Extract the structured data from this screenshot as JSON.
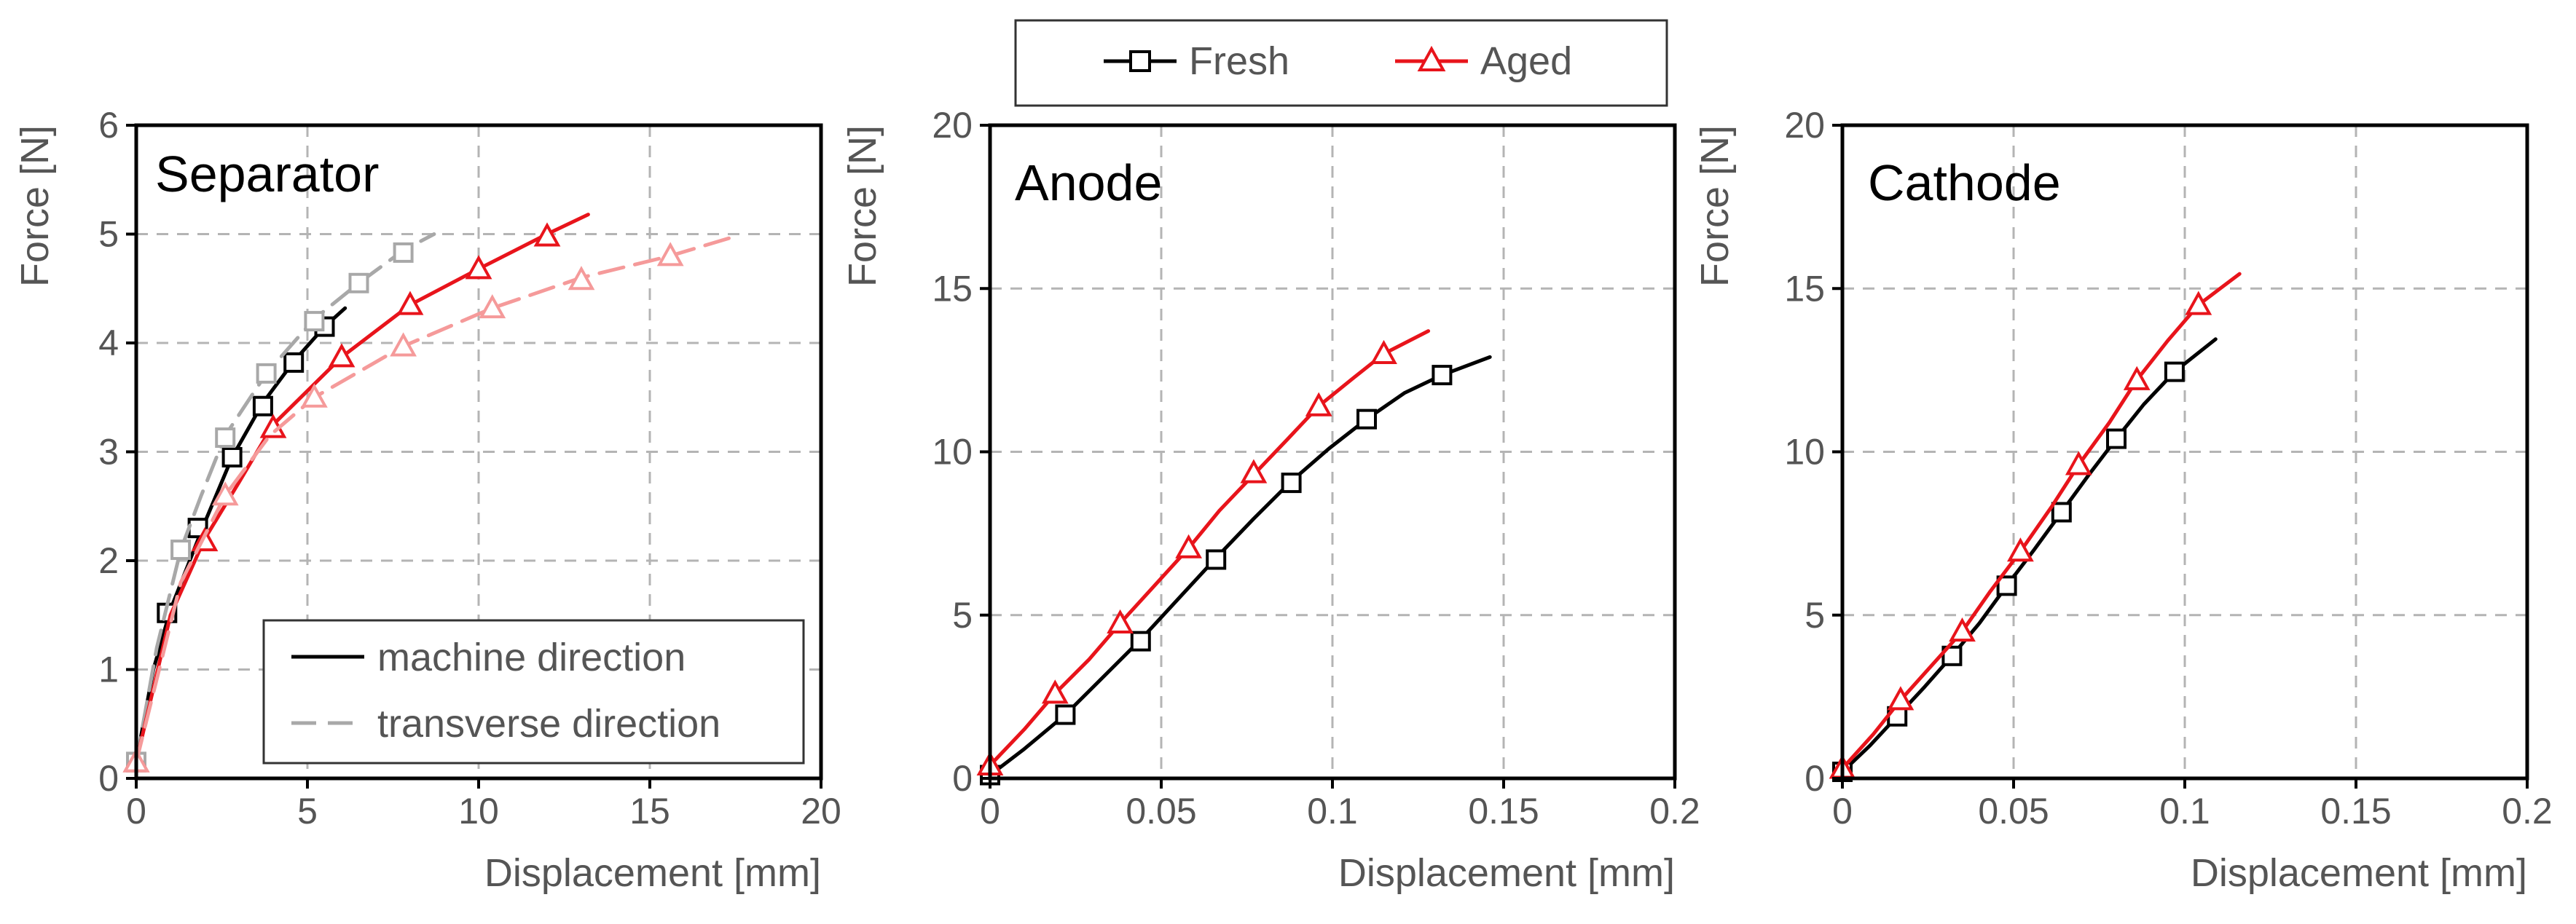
{
  "legend": {
    "fresh_label": "Fresh",
    "aged_label": "Aged"
  },
  "colors": {
    "fresh": "#000000",
    "aged": "#e8141b",
    "fresh_transverse": "#a8a8a8",
    "aged_transverse": "#f59a9a"
  },
  "chart_data": [
    {
      "type": "line",
      "title": "Separator",
      "xlabel": "Displacement [mm]",
      "ylabel": "Force [N]",
      "xlim": [
        0,
        20
      ],
      "ylim": [
        0,
        6
      ],
      "xticks": [
        0,
        5,
        10,
        15,
        20
      ],
      "yticks": [
        0,
        1,
        2,
        3,
        4,
        5,
        6
      ],
      "xtick_labels": [
        "0",
        "5",
        "10",
        "15",
        "20"
      ],
      "ytick_labels": [
        "0",
        "1",
        "2",
        "3",
        "4",
        "5",
        "6"
      ],
      "grid": true,
      "legend": {
        "position": "bottom-right",
        "entries": [
          {
            "label": "machine direction",
            "style": "solid"
          },
          {
            "label": "transverse direction",
            "style": "dashed"
          }
        ]
      },
      "series": [
        {
          "legend_key": "fresh",
          "direction": "machine direction",
          "style": "solid",
          "marker": "square",
          "color": "#000000",
          "x": [
            0,
            0.5,
            1,
            1.5,
            2,
            2.8,
            3.7,
            4.6,
            5.5,
            6.1
          ],
          "y": [
            0.15,
            1.0,
            1.55,
            1.95,
            2.35,
            2.95,
            3.45,
            3.83,
            4.15,
            4.32
          ],
          "markers_x": [
            0,
            0.9,
            1.8,
            2.8,
            3.7,
            4.6,
            5.5
          ],
          "markers_y": [
            0.15,
            1.52,
            2.3,
            2.95,
            3.42,
            3.82,
            4.15
          ]
        },
        {
          "legend_key": "fresh",
          "direction": "transverse direction",
          "style": "dashed",
          "marker": "square",
          "color": "#a8a8a8",
          "x": [
            0,
            0.6,
            1.3,
            1.9,
            2.6,
            3.8,
            5.2,
            6.5,
            7.8,
            8.7
          ],
          "y": [
            0.15,
            1.2,
            2.1,
            2.6,
            3.15,
            3.72,
            4.22,
            4.55,
            4.85,
            5.0
          ],
          "markers_x": [
            0,
            1.3,
            2.6,
            3.8,
            5.2,
            6.5,
            7.8
          ],
          "markers_y": [
            0.15,
            2.1,
            3.13,
            3.72,
            4.2,
            4.55,
            4.83
          ]
        },
        {
          "legend_key": "aged",
          "direction": "machine direction",
          "style": "solid",
          "marker": "triangle",
          "color": "#e8141b",
          "x": [
            0,
            1,
            2,
            3,
            4,
            6,
            8,
            10,
            12,
            13.2
          ],
          "y": [
            0.15,
            1.5,
            2.2,
            2.72,
            3.25,
            3.87,
            4.35,
            4.68,
            5.0,
            5.18
          ],
          "markers_x": [
            0,
            2,
            4,
            6,
            8,
            10,
            12
          ],
          "markers_y": [
            0.15,
            2.18,
            3.22,
            3.87,
            4.35,
            4.68,
            4.98
          ]
        },
        {
          "legend_key": "aged",
          "direction": "transverse direction",
          "style": "dashed",
          "marker": "triangle",
          "color": "#f59a9a",
          "x": [
            0,
            1.3,
            2.6,
            3.9,
            5.2,
            7.8,
            10.4,
            13,
            15.6,
            17.5
          ],
          "y": [
            0.15,
            1.8,
            2.6,
            3.15,
            3.5,
            3.97,
            4.32,
            4.6,
            4.8,
            4.98
          ],
          "markers_x": [
            0,
            2.6,
            5.2,
            7.8,
            10.4,
            13,
            15.6
          ],
          "markers_y": [
            0.15,
            2.6,
            3.5,
            3.97,
            4.32,
            4.58,
            4.8
          ]
        }
      ]
    },
    {
      "type": "line",
      "title": "Anode",
      "xlabel": "Displacement [mm]",
      "ylabel": "Force [N]",
      "xlim": [
        0,
        0.2
      ],
      "ylim": [
        0,
        20
      ],
      "xticks": [
        0,
        0.05,
        0.1,
        0.15,
        0.2
      ],
      "yticks": [
        0,
        5,
        10,
        15,
        20
      ],
      "xtick_labels": [
        "0",
        "0.05",
        "0.1",
        "0.15",
        "0.2"
      ],
      "ytick_labels": [
        "0",
        "5",
        "10",
        "15",
        "20"
      ],
      "grid": true,
      "series": [
        {
          "legend_key": "fresh",
          "style": "solid",
          "marker": "square",
          "color": "#000000",
          "x": [
            0,
            0.01,
            0.022,
            0.033,
            0.044,
            0.055,
            0.066,
            0.077,
            0.088,
            0.099,
            0.11,
            0.121,
            0.132,
            0.146
          ],
          "y": [
            0.1,
            0.9,
            1.95,
            3.1,
            4.25,
            5.5,
            6.75,
            7.95,
            9.1,
            10.1,
            11.0,
            11.8,
            12.35,
            12.9
          ],
          "markers_x": [
            0,
            0.022,
            0.044,
            0.066,
            0.088,
            0.11,
            0.132
          ],
          "markers_y": [
            0.1,
            1.95,
            4.2,
            6.7,
            9.05,
            11.0,
            12.35
          ]
        },
        {
          "legend_key": "aged",
          "style": "solid",
          "marker": "triangle",
          "color": "#e8141b",
          "x": [
            0,
            0.01,
            0.019,
            0.029,
            0.038,
            0.048,
            0.058,
            0.067,
            0.077,
            0.087,
            0.096,
            0.106,
            0.115,
            0.128
          ],
          "y": [
            0.4,
            1.5,
            2.6,
            3.65,
            4.75,
            5.9,
            7.05,
            8.2,
            9.3,
            10.4,
            11.4,
            12.25,
            13.0,
            13.7
          ],
          "markers_x": [
            0,
            0.019,
            0.038,
            0.058,
            0.077,
            0.096,
            0.115
          ],
          "markers_y": [
            0.4,
            2.6,
            4.75,
            7.05,
            9.35,
            11.4,
            13.0
          ]
        }
      ]
    },
    {
      "type": "line",
      "title": "Cathode",
      "xlabel": "Displacement [mm]",
      "ylabel": "Force [N]",
      "xlim": [
        0,
        0.2
      ],
      "ylim": [
        0,
        20
      ],
      "xticks": [
        0,
        0.05,
        0.1,
        0.15,
        0.2
      ],
      "yticks": [
        0,
        5,
        10,
        15,
        20
      ],
      "xtick_labels": [
        "0",
        "0.05",
        "0.1",
        "0.15",
        "0.2"
      ],
      "ytick_labels": [
        "0",
        "5",
        "10",
        "15",
        "20"
      ],
      "grid": true,
      "series": [
        {
          "legend_key": "fresh",
          "style": "solid",
          "marker": "square",
          "color": "#000000",
          "x": [
            0,
            0.008,
            0.016,
            0.024,
            0.032,
            0.04,
            0.048,
            0.056,
            0.064,
            0.072,
            0.08,
            0.088,
            0.097,
            0.109
          ],
          "y": [
            0.2,
            1.0,
            1.9,
            2.8,
            3.75,
            4.75,
            5.9,
            7.0,
            8.15,
            9.3,
            10.4,
            11.45,
            12.45,
            13.45
          ],
          "markers_x": [
            0,
            0.016,
            0.032,
            0.048,
            0.064,
            0.08,
            0.097
          ],
          "markers_y": [
            0.2,
            1.9,
            3.75,
            5.9,
            8.15,
            10.4,
            12.45
          ]
        },
        {
          "legend_key": "aged",
          "style": "solid",
          "marker": "triangle",
          "color": "#e8141b",
          "x": [
            0,
            0.009,
            0.017,
            0.026,
            0.035,
            0.043,
            0.052,
            0.061,
            0.069,
            0.078,
            0.086,
            0.095,
            0.104,
            0.116
          ],
          "y": [
            0.3,
            1.35,
            2.4,
            3.45,
            4.5,
            5.7,
            6.95,
            8.3,
            9.6,
            10.9,
            12.2,
            13.4,
            14.5,
            15.45
          ],
          "markers_x": [
            0,
            0.017,
            0.035,
            0.052,
            0.069,
            0.086,
            0.104
          ],
          "markers_y": [
            0.3,
            2.4,
            4.5,
            6.95,
            9.6,
            12.2,
            14.5
          ]
        }
      ]
    }
  ]
}
